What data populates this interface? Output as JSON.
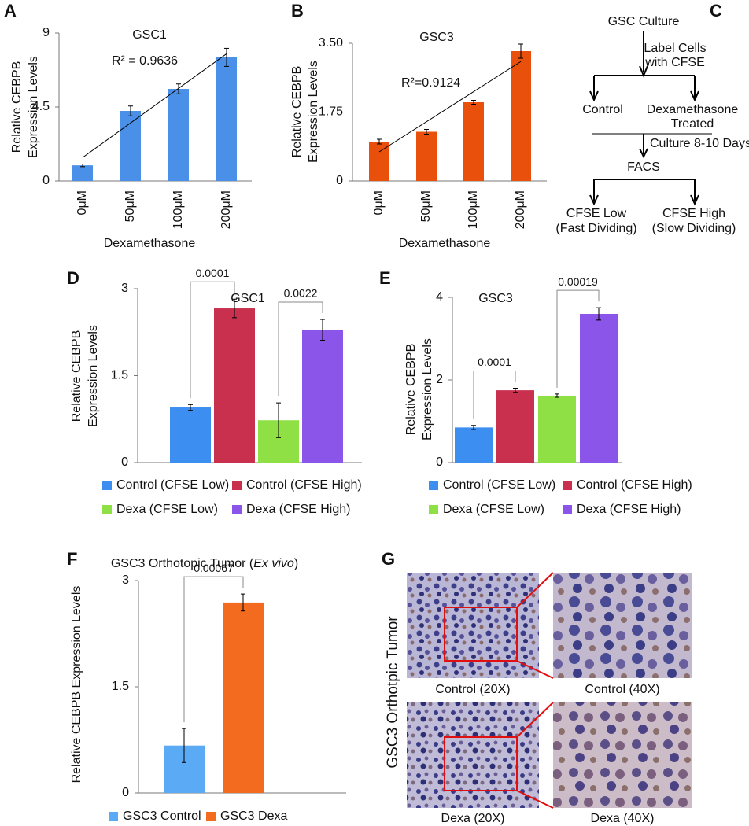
{
  "chart_data": [
    {
      "panel": "A",
      "type": "bar",
      "title": "GSC1",
      "categories": [
        "0μM",
        "50μM",
        "100μM",
        "200μM"
      ],
      "values": [
        0.95,
        4.26,
        5.6,
        7.52
      ],
      "errors": [
        0.08,
        0.3,
        0.3,
        0.55
      ],
      "color": "#4a90e8",
      "ylim": [
        0,
        9
      ],
      "yticks": [
        0,
        4.5,
        9
      ],
      "ylabel": [
        "Relative CEBPB",
        "Expression Levels"
      ],
      "xlabel": "Dexamethasone",
      "trendline": true,
      "annotation": "R² = 0.9636"
    },
    {
      "panel": "B",
      "type": "bar",
      "title": "GSC3",
      "categories": [
        "0μM",
        "50μM",
        "100μM",
        "200μM"
      ],
      "values": [
        1.0,
        1.25,
        2.0,
        3.3
      ],
      "errors": [
        0.06,
        0.06,
        0.05,
        0.18
      ],
      "color": "#e8500c",
      "ylim": [
        0,
        3.5
      ],
      "yticks": [
        0,
        1.75,
        {
          "value": 3.5,
          "label": "3.50"
        }
      ],
      "ylabel": [
        "Relative CEBPB",
        "Expression Levels"
      ],
      "xlabel": "Dexamethasone",
      "trendline": true,
      "annotation": "R²=0.9124"
    },
    {
      "panel": "D",
      "type": "bar",
      "title": "GSC1",
      "categories": [
        "Control (CFSE Low)",
        "Control (CFSE High)",
        "Dexa (CFSE Low)",
        "Dexa (CFSE High)"
      ],
      "values": [
        0.95,
        2.66,
        0.73,
        2.29
      ],
      "errors": [
        0.05,
        0.16,
        0.3,
        0.18
      ],
      "colors": [
        "#3c8ff0",
        "#c8304e",
        "#8fe045",
        "#8a55e8"
      ],
      "ylim": [
        0,
        3
      ],
      "yticks": [
        0,
        1.5,
        3
      ],
      "ylabel": [
        "Relative CEBPB",
        "Expression Levels"
      ],
      "pvalues": [
        "0.0001",
        "0.0022"
      ]
    },
    {
      "panel": "E",
      "type": "bar",
      "title": "GSC3",
      "categories": [
        "Control (CFSE Low)",
        "Control (CFSE High)",
        "Dexa (CFSE Low)",
        "Dexa (CFSE High)"
      ],
      "values": [
        0.85,
        1.75,
        1.62,
        3.6
      ],
      "errors": [
        0.05,
        0.05,
        0.04,
        0.15
      ],
      "colors": [
        "#3c8ff0",
        "#c8304e",
        "#8fe045",
        "#8a55e8"
      ],
      "ylim": [
        0,
        4
      ],
      "yticks": [
        0,
        2,
        4
      ],
      "ylabel": [
        "Relative CEBPB",
        "Expression Levels"
      ],
      "pvalues": [
        "0.0001",
        "0.00019"
      ]
    },
    {
      "panel": "F",
      "type": "bar",
      "title": [
        "GSC3 Orthotopic Tumor (",
        "Ex vivo",
        ")"
      ],
      "categories": [
        "GSC3 Control",
        "GSC3 Dexa"
      ],
      "values": [
        0.67,
        2.69
      ],
      "errors": [
        0.24,
        0.12
      ],
      "colors": [
        "#5aaaf5",
        "#f26b1f"
      ],
      "ylim": [
        0,
        3
      ],
      "yticks": [
        0,
        1.5,
        3
      ],
      "ylabel": [
        "Relative CEBPB Expression Levels"
      ],
      "pvalues": [
        "0.00067"
      ]
    }
  ],
  "flowchart": {
    "panel": "C",
    "nodes": [
      [
        "GSC Culture"
      ],
      [
        "Label Cells",
        "with CFSE"
      ],
      [
        "Control"
      ],
      [
        "Dexamethasone",
        "Treated"
      ],
      [
        "Culture 8-10 Days"
      ],
      [
        "FACS"
      ],
      [
        "CFSE Low",
        "(Fast Dividing)"
      ],
      [
        "CFSE High",
        "(Slow Dividing)"
      ]
    ]
  },
  "micrographs": {
    "panel": "G",
    "side_label": "GSC3 Orthotpic Tumor",
    "captions": [
      "Control (20X)",
      "Control (40X)",
      "Dexa (20X)",
      "Dexa (40X)"
    ]
  }
}
